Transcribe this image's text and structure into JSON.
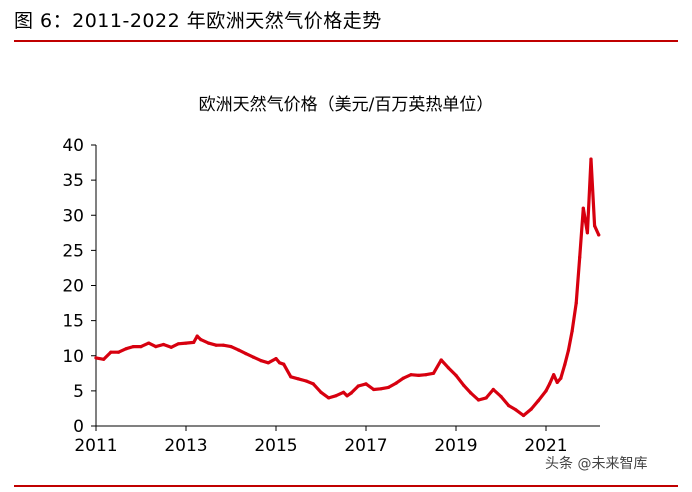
{
  "figure_title": "图 6：2011-2022 年欧洲天然气价格走势",
  "watermark": "头条 @未来智库",
  "chart_data": {
    "type": "line",
    "title": "欧洲天然气价格（美元/百万英热单位）",
    "xlabel": "",
    "ylabel": "",
    "xlim": [
      2011,
      2022.2
    ],
    "ylim": [
      0,
      40
    ],
    "x_ticks": [
      "2011",
      "2013",
      "2015",
      "2017",
      "2019",
      "2021"
    ],
    "y_ticks": [
      "0",
      "5",
      "10",
      "15",
      "20",
      "25",
      "30",
      "35",
      "40"
    ],
    "grid": false,
    "legend": "none",
    "series": [
      {
        "color": "#d7000f",
        "x": [
          2011.0,
          2011.17,
          2011.33,
          2011.5,
          2011.67,
          2011.83,
          2012.0,
          2012.17,
          2012.33,
          2012.5,
          2012.67,
          2012.83,
          2013.0,
          2013.17,
          2013.25,
          2013.33,
          2013.5,
          2013.67,
          2013.83,
          2014.0,
          2014.17,
          2014.33,
          2014.5,
          2014.67,
          2014.83,
          2015.0,
          2015.08,
          2015.17,
          2015.33,
          2015.5,
          2015.67,
          2015.83,
          2016.0,
          2016.17,
          2016.33,
          2016.5,
          2016.58,
          2016.67,
          2016.83,
          2017.0,
          2017.17,
          2017.33,
          2017.5,
          2017.67,
          2017.83,
          2018.0,
          2018.17,
          2018.33,
          2018.5,
          2018.67,
          2018.83,
          2019.0,
          2019.17,
          2019.33,
          2019.5,
          2019.67,
          2019.83,
          2020.0,
          2020.17,
          2020.33,
          2020.5,
          2020.67,
          2020.83,
          2021.0,
          2021.08,
          2021.17,
          2021.25,
          2021.33,
          2021.42,
          2021.5,
          2021.58,
          2021.67,
          2021.75,
          2021.83,
          2021.92,
          2022.0,
          2022.08,
          2022.17
        ],
        "y": [
          9.7,
          9.5,
          10.5,
          10.5,
          11.0,
          11.3,
          11.3,
          11.8,
          11.3,
          11.6,
          11.2,
          11.7,
          11.8,
          11.9,
          12.8,
          12.3,
          11.8,
          11.5,
          11.5,
          11.3,
          10.8,
          10.3,
          9.8,
          9.3,
          9.0,
          9.6,
          9.0,
          8.8,
          7.0,
          6.7,
          6.4,
          6.0,
          4.8,
          4.0,
          4.3,
          4.8,
          4.3,
          4.7,
          5.7,
          6.0,
          5.2,
          5.3,
          5.5,
          6.1,
          6.8,
          7.3,
          7.2,
          7.3,
          7.5,
          9.4,
          8.3,
          7.2,
          5.8,
          4.7,
          3.7,
          4.0,
          5.2,
          4.2,
          2.9,
          2.3,
          1.5,
          2.4,
          3.6,
          5.0,
          6.0,
          7.3,
          6.2,
          6.8,
          8.8,
          10.8,
          13.5,
          17.5,
          24.0,
          31.0,
          27.5,
          38.0,
          28.5,
          27.2
        ]
      }
    ]
  }
}
